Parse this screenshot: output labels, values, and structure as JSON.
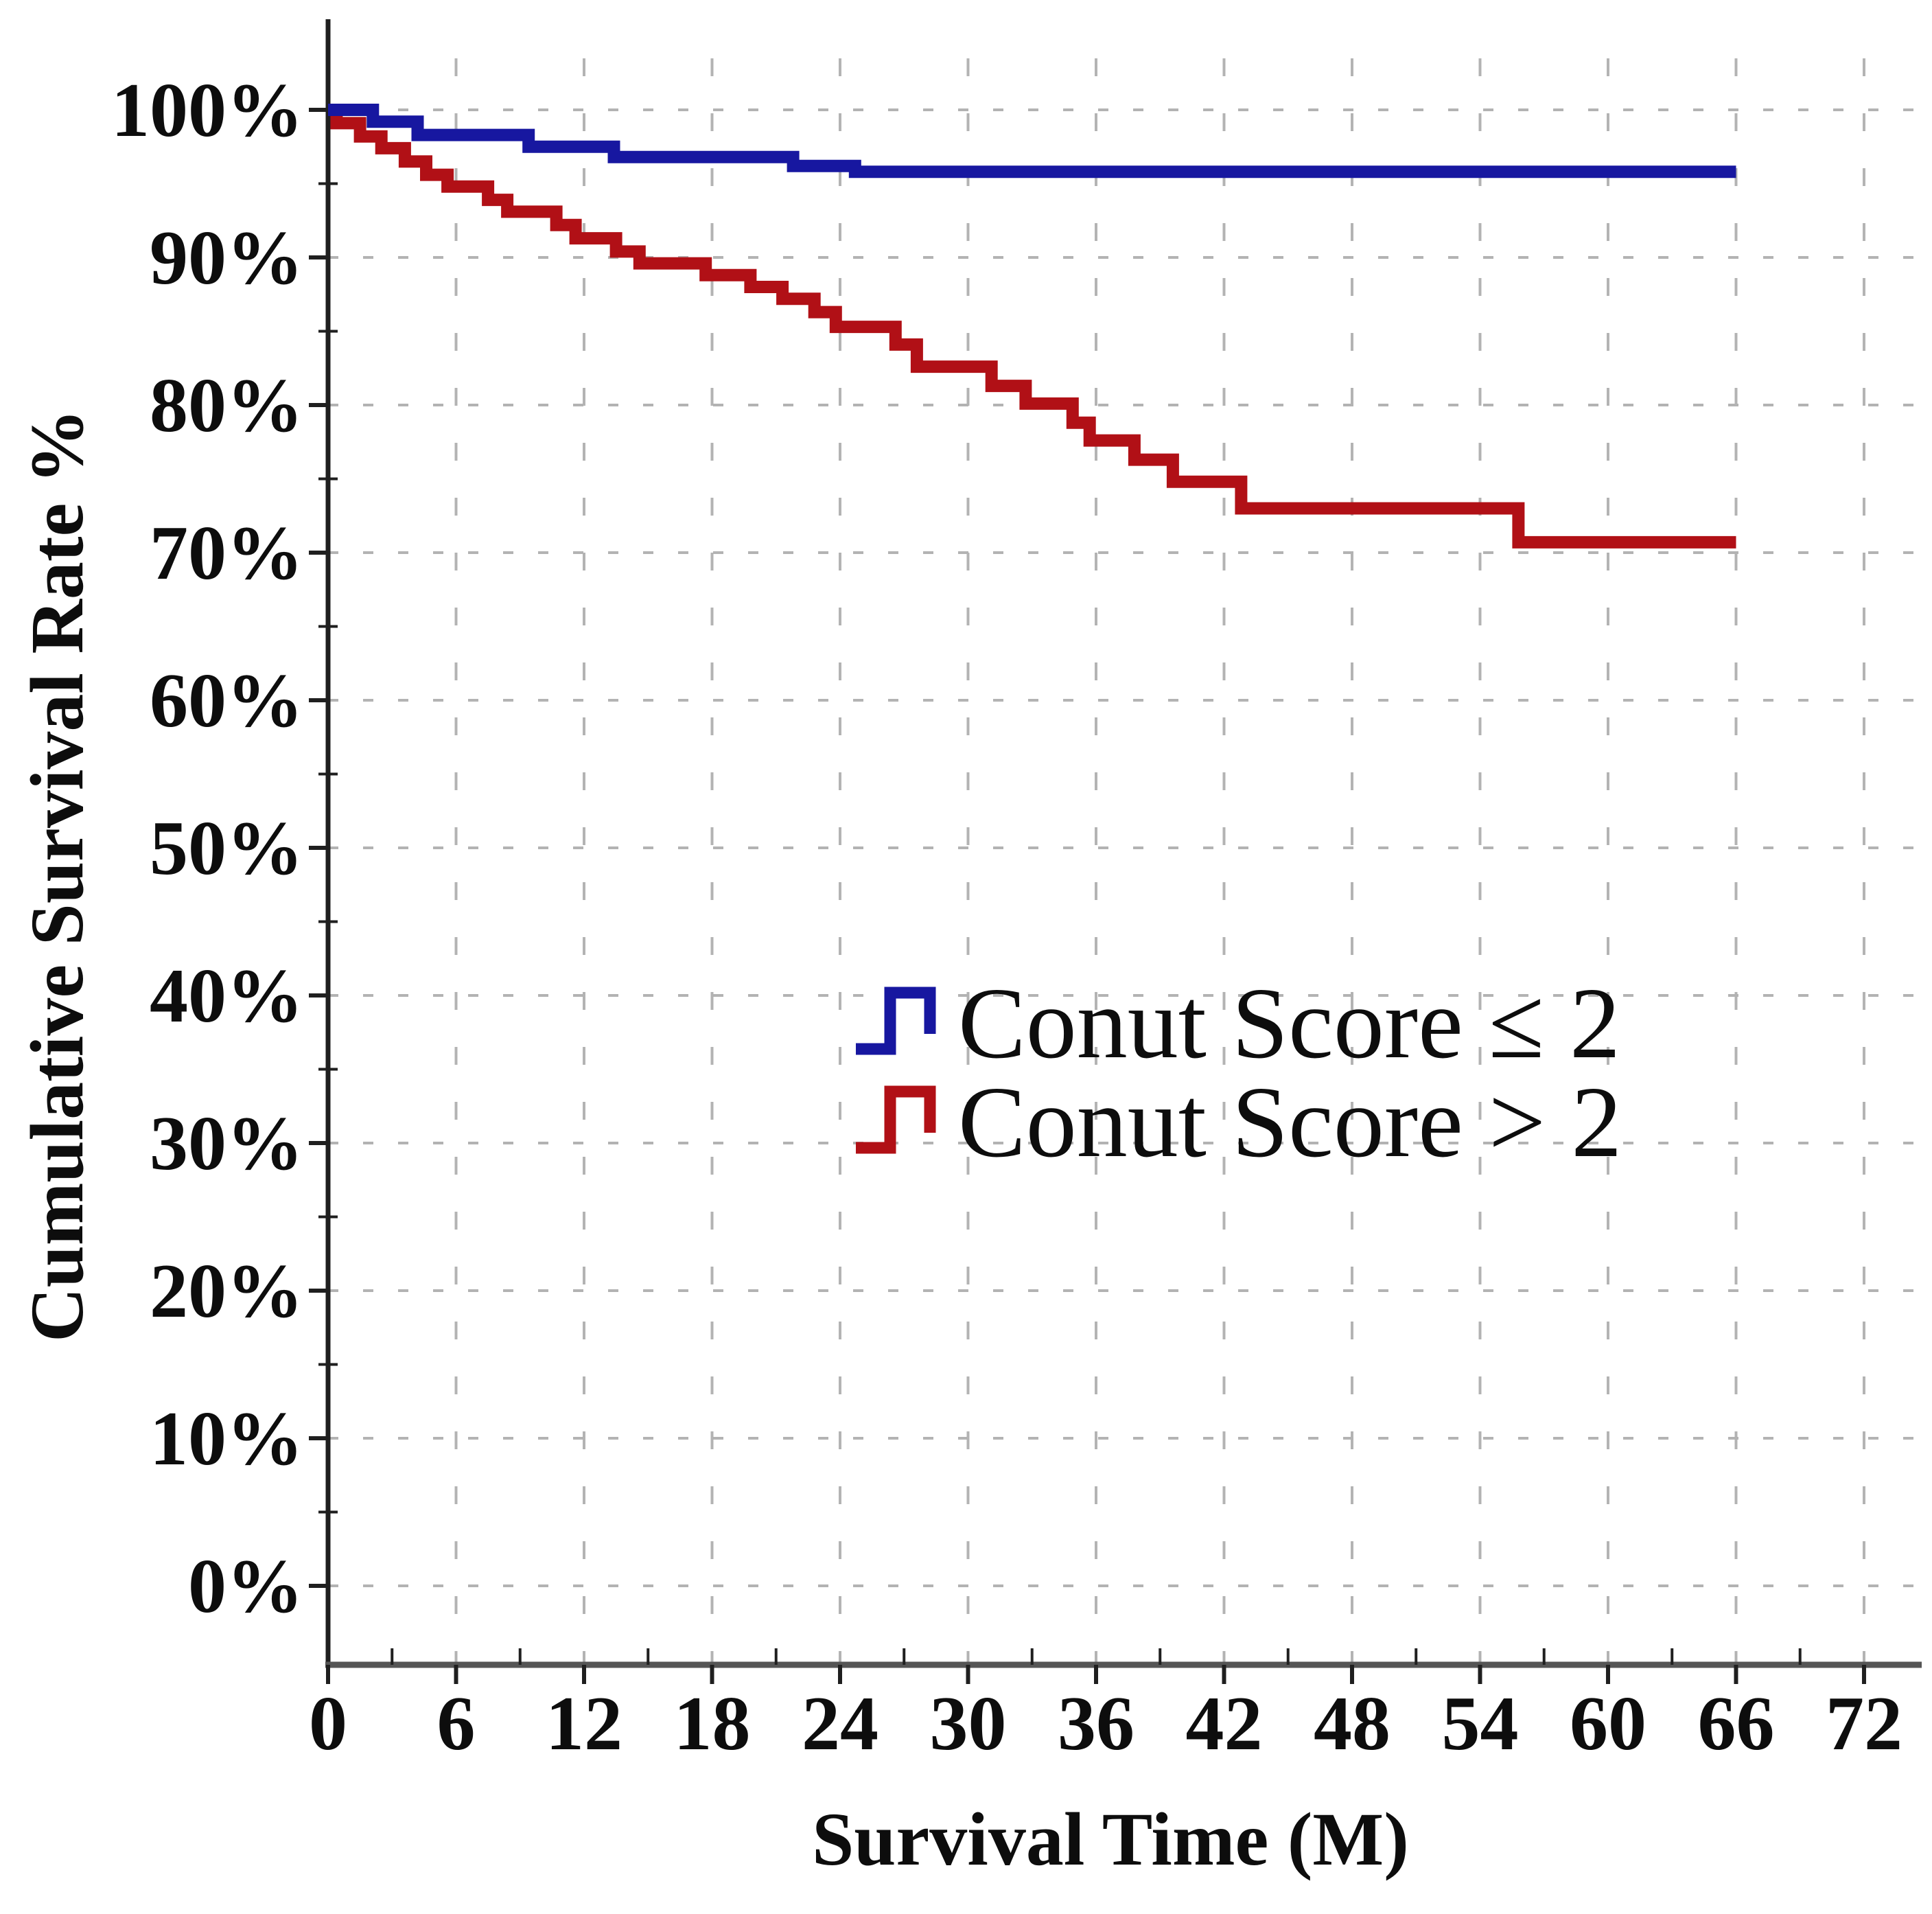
{
  "colors": {
    "blue": "#1717a0",
    "red": "#b11016",
    "grid": "#b3b3b3",
    "axis": "#1f1f1f",
    "bottom_axis": "#555555",
    "text": "#0d0d0d",
    "background": "#ffffff"
  },
  "chart_data": {
    "type": "line",
    "subtype": "kaplan-meier-step",
    "title": "",
    "xlabel": "Survival Time (M)",
    "ylabel": "Cumulative Survival Rate %",
    "xlim": [
      0,
      72
    ],
    "ylim": [
      0,
      100
    ],
    "grid": "dashed",
    "legend_position": "center",
    "x_ticks": [
      0,
      6,
      12,
      18,
      24,
      30,
      36,
      42,
      48,
      54,
      60,
      66,
      72
    ],
    "x_tick_labels": [
      "0",
      "6",
      "12",
      "18",
      "24",
      "30",
      "36",
      "42",
      "48",
      "54",
      "60",
      "66",
      "72"
    ],
    "y_ticks": [
      0,
      10,
      20,
      30,
      40,
      50,
      60,
      70,
      80,
      90,
      100
    ],
    "y_tick_labels": [
      "0%",
      "10%",
      "20%",
      "30%",
      "40%",
      "50%",
      "60%",
      "70%",
      "80%",
      "90%",
      "100%"
    ],
    "series": [
      {
        "name": "Conut Score ≤ 2",
        "color": "#1717a0",
        "end_x": 66,
        "steps": [
          [
            0,
            100
          ],
          [
            2.1,
            99.2
          ],
          [
            4.2,
            98.3
          ],
          [
            9.4,
            97.5
          ],
          [
            13.4,
            96.8
          ],
          [
            21.8,
            96.2
          ],
          [
            24.7,
            95.8
          ]
        ]
      },
      {
        "name": "Conut Score > 2",
        "color": "#b11016",
        "end_x": 66,
        "steps": [
          [
            0,
            100
          ],
          [
            0.4,
            99.1
          ],
          [
            1.5,
            98.2
          ],
          [
            2.5,
            97.4
          ],
          [
            3.6,
            96.5
          ],
          [
            4.6,
            95.6
          ],
          [
            5.6,
            94.8
          ],
          [
            7.5,
            93.9
          ],
          [
            8.4,
            93.1
          ],
          [
            10.7,
            92.2
          ],
          [
            11.6,
            91.3
          ],
          [
            13.5,
            90.4
          ],
          [
            14.6,
            89.6
          ],
          [
            17.7,
            88.8
          ],
          [
            19.8,
            88.0
          ],
          [
            21.3,
            87.2
          ],
          [
            22.8,
            86.3
          ],
          [
            23.8,
            85.3
          ],
          [
            26.6,
            84.1
          ],
          [
            27.6,
            82.6
          ],
          [
            31.1,
            81.3
          ],
          [
            32.7,
            80.1
          ],
          [
            34.9,
            78.8
          ],
          [
            35.7,
            77.6
          ],
          [
            37.8,
            76.3
          ],
          [
            39.6,
            74.8
          ],
          [
            42.8,
            73.0
          ],
          [
            55.8,
            70.7
          ]
        ]
      }
    ]
  }
}
